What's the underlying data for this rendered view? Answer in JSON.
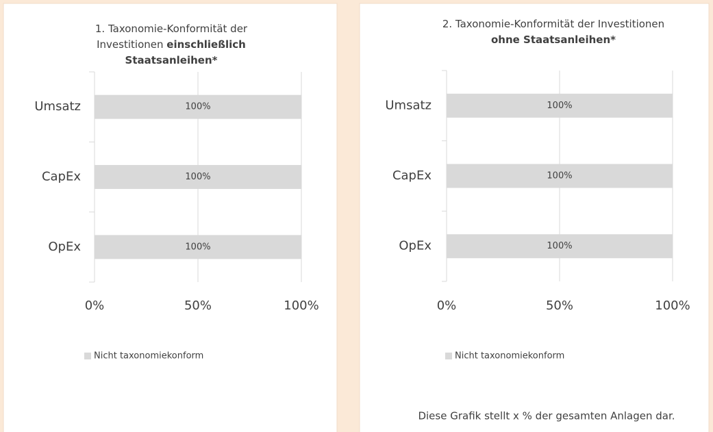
{
  "chart_data": [
    {
      "type": "bar",
      "orientation": "horizontal",
      "title": [
        [
          {
            "text": "1. Taxonomie-Konformität der",
            "bold": false
          }
        ],
        [
          {
            "text": "Investitionen ",
            "bold": false
          },
          {
            "text": "einschließlich",
            "bold": true
          }
        ],
        [
          {
            "text": "Staatsanleihen*",
            "bold": true
          }
        ]
      ],
      "categories": [
        "Umsatz",
        "CapEx",
        "OpEx"
      ],
      "series": [
        {
          "name": "Nicht taxonomiekonform",
          "color": "#d9d9d9",
          "values": [
            100,
            100,
            100
          ],
          "value_labels": [
            "100%",
            "100%",
            "100%"
          ]
        }
      ],
      "xlim": [
        0,
        100
      ],
      "xticks": [
        {
          "value": 0,
          "label": "0%"
        },
        {
          "value": 50,
          "label": "50%"
        },
        {
          "value": 100,
          "label": "100%"
        }
      ],
      "grid": true,
      "legend": "bottom"
    },
    {
      "type": "bar",
      "orientation": "horizontal",
      "title": [
        [
          {
            "text": "2. Taxonomie-Konformität der Investitionen",
            "bold": false
          }
        ],
        [
          {
            "text": "ohne Staatsanleihen*",
            "bold": true
          }
        ]
      ],
      "categories": [
        "Umsatz",
        "CapEx",
        "OpEx"
      ],
      "series": [
        {
          "name": "Nicht taxonomiekonform",
          "color": "#d9d9d9",
          "values": [
            100,
            100,
            100
          ],
          "value_labels": [
            "100%",
            "100%",
            "100%"
          ]
        }
      ],
      "xlim": [
        0,
        100
      ],
      "xticks": [
        {
          "value": 0,
          "label": "0%"
        },
        {
          "value": 50,
          "label": "50%"
        },
        {
          "value": 100,
          "label": "100%"
        }
      ],
      "grid": true,
      "legend": "bottom",
      "note": "Diese Grafik stellt x % der gesamten Anlagen dar."
    }
  ]
}
